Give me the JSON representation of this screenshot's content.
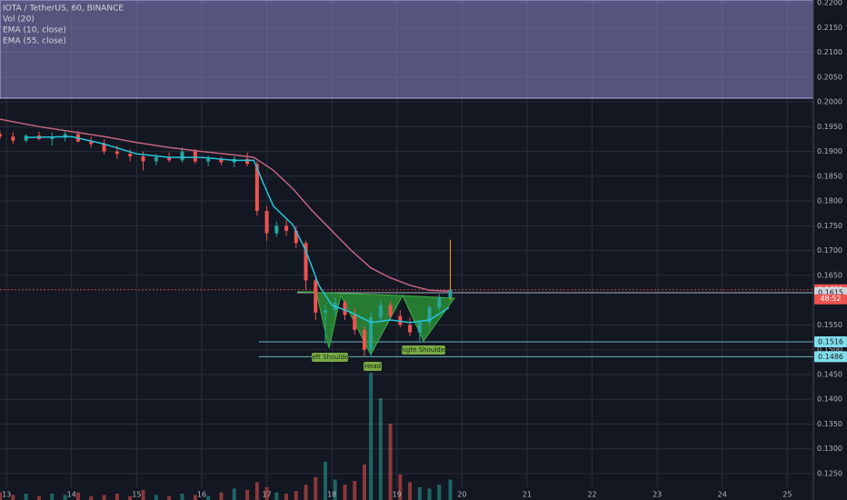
{
  "chart_data": {
    "type": "candlestick",
    "title": "IOTA / TetherUS, 60, BINANCE",
    "legend": [
      "Vol (20)",
      "EMA (10, close)",
      "EMA (55, close)"
    ],
    "xlim": [
      12.9,
      25.4
    ],
    "xticks": [
      13,
      14,
      15,
      16,
      17,
      18,
      19,
      20,
      21,
      22,
      23,
      24,
      25
    ],
    "ylim": [
      0.125,
      0.22
    ],
    "yticks": [
      {
        "value": 0.22,
        "label": "0.2200"
      },
      {
        "value": 0.215,
        "label": "0.2150"
      },
      {
        "value": 0.21,
        "label": "0.2100"
      },
      {
        "value": 0.205,
        "label": "0.2050"
      },
      {
        "value": 0.2,
        "label": "0.2000"
      },
      {
        "value": 0.195,
        "label": "0.1950"
      },
      {
        "value": 0.19,
        "label": "0.1900"
      },
      {
        "value": 0.185,
        "label": "0.1850"
      },
      {
        "value": 0.18,
        "label": "0.1800"
      },
      {
        "value": 0.175,
        "label": "0.1750"
      },
      {
        "value": 0.17,
        "label": "0.1700"
      },
      {
        "value": 0.165,
        "label": "0.1650"
      },
      {
        "value": 0.155,
        "label": "0.1550"
      },
      {
        "value": 0.15,
        "label": "0.1500"
      },
      {
        "value": 0.145,
        "label": "0.1450"
      },
      {
        "value": 0.14,
        "label": "0.1400"
      },
      {
        "value": 0.135,
        "label": "0.1350"
      },
      {
        "value": 0.13,
        "label": "0.1300"
      },
      {
        "value": 0.125,
        "label": "0.1250"
      }
    ],
    "grid": true,
    "up_color": "#26a69a",
    "down_color": "#ef5350",
    "x": [
      12.9,
      13.1,
      13.3,
      13.5,
      13.7,
      13.9,
      14.1,
      14.3,
      14.5,
      14.7,
      14.9,
      15.1,
      15.3,
      15.5,
      15.7,
      15.9,
      16.1,
      16.3,
      16.5,
      16.7,
      16.85,
      17.0,
      17.15,
      17.3,
      17.45,
      17.6,
      17.75,
      17.9,
      18.05,
      18.2,
      18.35,
      18.5,
      18.6,
      18.75,
      18.9,
      19.05,
      19.2,
      19.35,
      19.5,
      19.65,
      19.82
    ],
    "open": [
      0.1935,
      0.193,
      0.1922,
      0.1932,
      0.1925,
      0.1928,
      0.1935,
      0.192,
      0.1915,
      0.19,
      0.1895,
      0.189,
      0.188,
      0.1888,
      0.1882,
      0.19,
      0.188,
      0.1885,
      0.1878,
      0.1885,
      0.1875,
      0.178,
      0.1735,
      0.175,
      0.174,
      0.1715,
      0.164,
      0.1575,
      0.158,
      0.1595,
      0.157,
      0.154,
      0.15,
      0.1565,
      0.159,
      0.1568,
      0.155,
      0.1535,
      0.1555,
      0.1585,
      0.1605
    ],
    "high": [
      0.1942,
      0.1938,
      0.1935,
      0.194,
      0.1938,
      0.194,
      0.1942,
      0.193,
      0.1925,
      0.1912,
      0.1905,
      0.19,
      0.1895,
      0.1898,
      0.1908,
      0.1905,
      0.1892,
      0.189,
      0.189,
      0.1898,
      0.188,
      0.179,
      0.1758,
      0.1762,
      0.175,
      0.172,
      0.1645,
      0.159,
      0.1605,
      0.16,
      0.1585,
      0.1548,
      0.1575,
      0.16,
      0.1598,
      0.158,
      0.1565,
      0.156,
      0.159,
      0.1612,
      0.1722
    ],
    "low": [
      0.1925,
      0.1915,
      0.1918,
      0.1922,
      0.1912,
      0.192,
      0.1918,
      0.1908,
      0.1895,
      0.1885,
      0.188,
      0.1862,
      0.1872,
      0.1878,
      0.1878,
      0.1875,
      0.187,
      0.1872,
      0.1868,
      0.187,
      0.177,
      0.172,
      0.1728,
      0.173,
      0.1705,
      0.162,
      0.156,
      0.1512,
      0.157,
      0.156,
      0.153,
      0.1488,
      0.1485,
      0.1555,
      0.156,
      0.1545,
      0.1528,
      0.1518,
      0.1548,
      0.1578,
      0.16
    ],
    "close": [
      0.193,
      0.1922,
      0.1932,
      0.1925,
      0.1928,
      0.1935,
      0.192,
      0.1915,
      0.19,
      0.1895,
      0.189,
      0.188,
      0.1888,
      0.1882,
      0.19,
      0.188,
      0.1885,
      0.1878,
      0.1885,
      0.1875,
      0.178,
      0.1735,
      0.175,
      0.174,
      0.1715,
      0.164,
      0.1575,
      0.158,
      0.1595,
      0.157,
      0.154,
      0.15,
      0.1565,
      0.159,
      0.1568,
      0.155,
      0.1535,
      0.1555,
      0.1585,
      0.1605,
      0.1621
    ],
    "volume": [
      6,
      4,
      5,
      3,
      5,
      4,
      6,
      3,
      4,
      5,
      3,
      8,
      4,
      3,
      5,
      4,
      3,
      6,
      9,
      8,
      14,
      10,
      6,
      5,
      7,
      12,
      18,
      30,
      16,
      12,
      15,
      28,
      100,
      80,
      60,
      20,
      14,
      10,
      9,
      12,
      16
    ],
    "y2lim": [
      0,
      100
    ],
    "series": [
      {
        "name": "EMA (10, close)",
        "color": "#26c6da",
        "x": [
          13.3,
          14,
          14.5,
          15,
          15.5,
          16,
          16.5,
          16.8,
          16.95,
          17.1,
          17.4,
          17.6,
          17.8,
          18.0,
          18.3,
          18.6,
          18.9,
          19.2,
          19.5,
          19.8
        ],
        "values": [
          0.1928,
          0.193,
          0.1915,
          0.1895,
          0.1888,
          0.1888,
          0.1882,
          0.1882,
          0.1835,
          0.179,
          0.1752,
          0.17,
          0.163,
          0.159,
          0.1575,
          0.1555,
          0.156,
          0.1555,
          0.156,
          0.1585
        ]
      },
      {
        "name": "EMA (55, close)",
        "color": "#c2637f",
        "x": [
          12.9,
          13.5,
          14,
          14.5,
          15,
          15.5,
          16,
          16.5,
          16.8,
          17.1,
          17.4,
          17.7,
          18.0,
          18.3,
          18.6,
          18.9,
          19.2,
          19.5,
          19.8
        ],
        "values": [
          0.1965,
          0.195,
          0.194,
          0.193,
          0.1918,
          0.1908,
          0.19,
          0.1893,
          0.1888,
          0.1862,
          0.1825,
          0.178,
          0.174,
          0.17,
          0.1665,
          0.1645,
          0.163,
          0.162,
          0.1618
        ]
      }
    ],
    "price_tags": [
      {
        "value": 0.1621,
        "label": "0.1621",
        "color": "#ef5350"
      },
      {
        "value": 0.1615,
        "label": "0.1615",
        "color": "#d1d4dc"
      },
      {
        "value": 0.1516,
        "label": "0.1516",
        "color": "#80deea"
      },
      {
        "value": 0.1486,
        "label": "0.1486",
        "color": "#80deea"
      }
    ],
    "countdown": "48:52",
    "annotations": [
      "Left Shoulder",
      "Head",
      "Right Shoulder"
    ]
  }
}
